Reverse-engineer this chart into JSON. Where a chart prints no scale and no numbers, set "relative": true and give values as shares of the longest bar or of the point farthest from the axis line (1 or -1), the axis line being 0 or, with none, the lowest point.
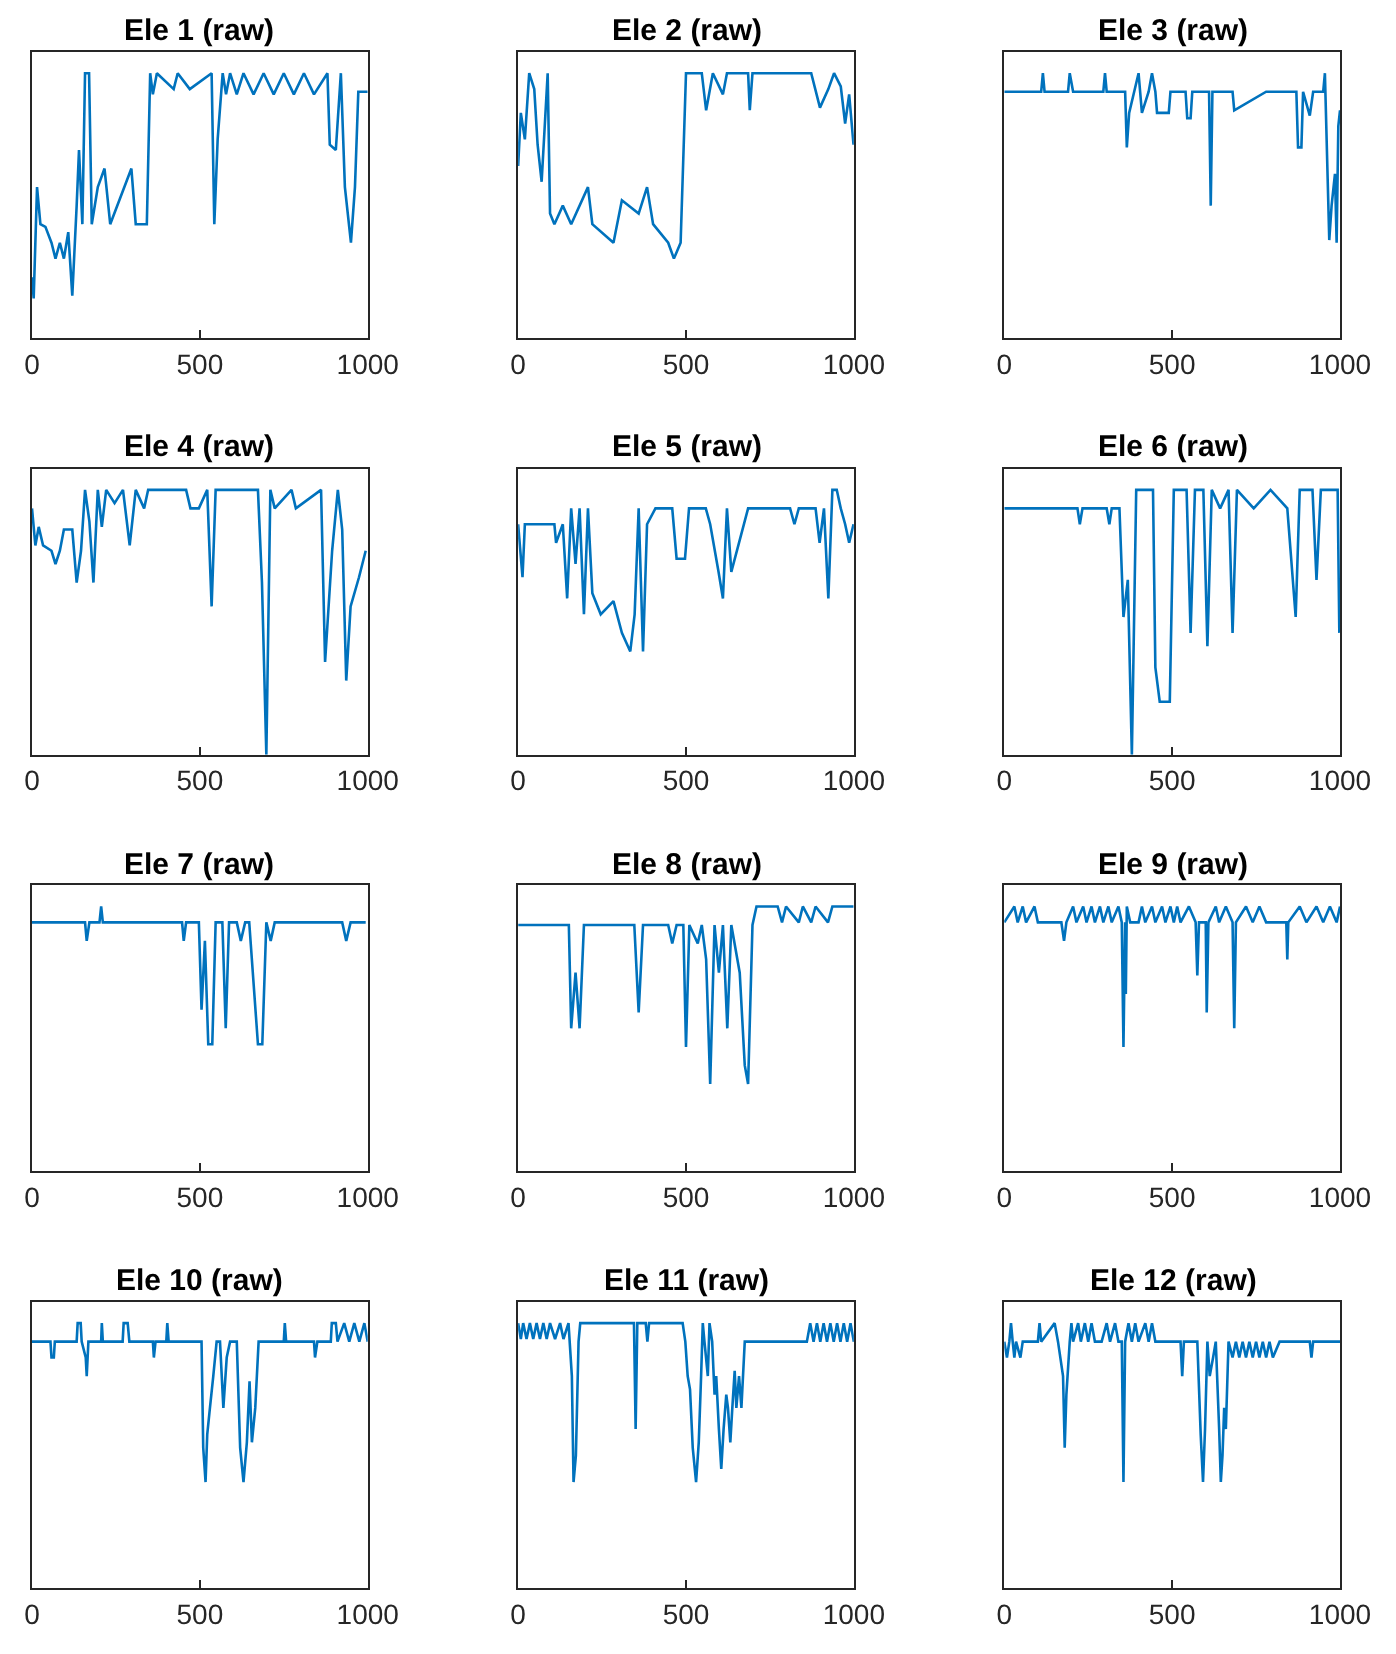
{
  "chart_data": [
    {
      "type": "line",
      "title": "Ele 1 (raw)",
      "relative": true,
      "xlim": [
        0,
        1000
      ],
      "xticks": [
        0,
        500,
        1000
      ],
      "series": [
        {
          "color": "#0072bd",
          "x": [
            0,
            5,
            15,
            25,
            40,
            58,
            70,
            83,
            95,
            108,
            120,
            133,
            140,
            150,
            158,
            170,
            178,
            196,
            216,
            233,
            296,
            309,
            342,
            352,
            360,
            372,
            422,
            434,
            470,
            535,
            543,
            553,
            568,
            578,
            590,
            610,
            630,
            660,
            690,
            720,
            750,
            780,
            810,
            840,
            880,
            887,
            905,
            920,
            932,
            950,
            962,
            972,
            1000
          ],
          "values": [
            0.23,
            0.15,
            0.57,
            0.43,
            0.42,
            0.36,
            0.3,
            0.36,
            0.3,
            0.4,
            0.16,
            0.5,
            0.71,
            0.43,
            1.0,
            1.0,
            0.43,
            0.57,
            0.64,
            0.43,
            0.64,
            0.43,
            0.43,
            1.0,
            0.92,
            1.0,
            0.94,
            1.0,
            0.94,
            1.0,
            0.43,
            0.75,
            1.0,
            0.92,
            1.0,
            0.92,
            1.0,
            0.92,
            1.0,
            0.92,
            1.0,
            0.92,
            1.0,
            0.92,
            1.0,
            0.73,
            0.71,
            1.0,
            0.57,
            0.36,
            0.57,
            0.93,
            0.93
          ]
        }
      ]
    },
    {
      "type": "line",
      "title": "Ele 2 (raw)",
      "relative": true,
      "xlim": [
        0,
        1000
      ],
      "xticks": [
        0,
        500,
        1000
      ],
      "series": [
        {
          "color": "#0072bd",
          "x": [
            0,
            8,
            20,
            33,
            48,
            58,
            70,
            88,
            95,
            108,
            133,
            158,
            208,
            221,
            284,
            309,
            359,
            384,
            402,
            447,
            464,
            484,
            500,
            547,
            560,
            580,
            610,
            622,
            685,
            690,
            698,
            873,
            899,
            924,
            941,
            961,
            974,
            986,
            999
          ],
          "values": [
            0.65,
            0.85,
            0.75,
            1.0,
            0.94,
            0.73,
            0.59,
            1.0,
            0.47,
            0.43,
            0.5,
            0.43,
            0.57,
            0.43,
            0.36,
            0.52,
            0.47,
            0.57,
            0.43,
            0.36,
            0.3,
            0.36,
            1.0,
            1.0,
            0.86,
            1.0,
            0.92,
            1.0,
            1.0,
            0.86,
            1.0,
            1.0,
            0.87,
            0.94,
            1.0,
            0.95,
            0.81,
            0.92,
            0.73
          ]
        }
      ]
    },
    {
      "type": "line",
      "title": "Ele 3 (raw)",
      "relative": true,
      "xlim": [
        0,
        1000
      ],
      "xticks": [
        0,
        500,
        1000
      ],
      "series": [
        {
          "color": "#0072bd",
          "x": [
            0,
            110,
            115,
            120,
            190,
            195,
            205,
            295,
            300,
            305,
            360,
            365,
            372,
            400,
            410,
            430,
            440,
            450,
            455,
            490,
            495,
            540,
            545,
            555,
            560,
            610,
            615,
            620,
            680,
            685,
            780,
            870,
            875,
            885,
            890,
            910,
            920,
            950,
            955,
            968,
            975,
            985,
            990,
            995,
            1000
          ],
          "values": [
            0.93,
            0.93,
            1.0,
            0.93,
            0.93,
            1.0,
            0.93,
            0.93,
            1.0,
            0.93,
            0.93,
            0.72,
            0.85,
            1.0,
            0.85,
            0.93,
            1.0,
            0.93,
            0.85,
            0.85,
            0.93,
            0.93,
            0.83,
            0.83,
            0.93,
            0.93,
            0.5,
            0.93,
            0.93,
            0.86,
            0.93,
            0.93,
            0.72,
            0.72,
            0.93,
            0.84,
            0.93,
            0.93,
            1.0,
            0.37,
            0.5,
            0.62,
            0.36,
            0.8,
            0.86
          ]
        }
      ]
    },
    {
      "type": "line",
      "title": "Ele 4 (raw)",
      "relative": true,
      "xlim": [
        0,
        1000
      ],
      "xticks": [
        0,
        500,
        1000
      ],
      "series": [
        {
          "color": "#0072bd",
          "x": [
            0,
            10,
            20,
            33,
            58,
            70,
            83,
            95,
            120,
            133,
            146,
            158,
            171,
            183,
            196,
            208,
            221,
            246,
            271,
            291,
            309,
            334,
            346,
            459,
            472,
            497,
            522,
            535,
            547,
            673,
            685,
            698,
            710,
            723,
            773,
            786,
            861,
            873,
            894,
            911,
            924,
            936,
            949,
            974,
            994
          ],
          "values": [
            0.93,
            0.79,
            0.86,
            0.79,
            0.77,
            0.72,
            0.77,
            0.85,
            0.85,
            0.65,
            0.77,
            1.0,
            0.88,
            0.65,
            1.0,
            0.86,
            1.0,
            0.95,
            1.0,
            0.79,
            1.0,
            0.93,
            1.0,
            1.0,
            0.93,
            0.93,
            1.0,
            0.56,
            1.0,
            1.0,
            0.65,
            0.0,
            1.0,
            0.93,
            1.0,
            0.93,
            1.0,
            0.35,
            0.77,
            1.0,
            0.85,
            0.28,
            0.56,
            0.67,
            0.77
          ]
        }
      ]
    },
    {
      "type": "line",
      "title": "Ele 5 (raw)",
      "relative": true,
      "xlim": [
        0,
        1000
      ],
      "xticks": [
        0,
        500,
        1000
      ],
      "series": [
        {
          "color": "#0072bd",
          "x": [
            0,
            13,
            20,
            108,
            113,
            133,
            146,
            158,
            171,
            183,
            196,
            208,
            221,
            246,
            284,
            309,
            334,
            347,
            359,
            372,
            384,
            409,
            459,
            472,
            497,
            509,
            559,
            572,
            597,
            610,
            622,
            635,
            685,
            810,
            823,
            836,
            886,
            898,
            911,
            924,
            936,
            949,
            961,
            974,
            986,
            999
          ],
          "values": [
            0.87,
            0.67,
            0.87,
            0.87,
            0.8,
            0.87,
            0.59,
            0.93,
            0.72,
            0.93,
            0.53,
            0.93,
            0.61,
            0.53,
            0.58,
            0.46,
            0.39,
            0.53,
            0.93,
            0.39,
            0.87,
            0.93,
            0.93,
            0.74,
            0.74,
            0.93,
            0.93,
            0.87,
            0.69,
            0.59,
            0.93,
            0.69,
            0.93,
            0.93,
            0.87,
            0.93,
            0.93,
            0.8,
            0.93,
            0.59,
            1.0,
            1.0,
            0.93,
            0.87,
            0.8,
            0.87
          ]
        }
      ]
    },
    {
      "type": "line",
      "title": "Ele 6 (raw)",
      "relative": true,
      "xlim": [
        0,
        1000
      ],
      "xticks": [
        0,
        500,
        1000
      ],
      "series": [
        {
          "color": "#0072bd",
          "x": [
            0,
            218,
            225,
            233,
            305,
            313,
            320,
            343,
            355,
            368,
            380,
            393,
            443,
            450,
            463,
            493,
            505,
            543,
            555,
            568,
            593,
            605,
            618,
            643,
            668,
            680,
            693,
            743,
            793,
            843,
            868,
            880,
            918,
            930,
            943,
            968,
            993,
            998
          ],
          "values": [
            0.93,
            0.93,
            0.87,
            0.93,
            0.93,
            0.87,
            0.93,
            0.93,
            0.52,
            0.66,
            0.0,
            1.0,
            1.0,
            0.33,
            0.2,
            0.2,
            1.0,
            1.0,
            0.46,
            1.0,
            1.0,
            0.41,
            1.0,
            0.93,
            1.0,
            0.46,
            1.0,
            0.93,
            1.0,
            0.93,
            0.52,
            1.0,
            1.0,
            0.66,
            1.0,
            1.0,
            1.0,
            0.46
          ]
        }
      ]
    },
    {
      "type": "line",
      "title": "Ele 7 (raw)",
      "relative": true,
      "xlim": [
        0,
        1000
      ],
      "xticks": [
        0,
        500,
        1000
      ],
      "series": [
        {
          "color": "#0072bd",
          "x": [
            0,
            158,
            163,
            171,
            201,
            206,
            211,
            447,
            452,
            459,
            497,
            505,
            515,
            525,
            537,
            547,
            567,
            577,
            587,
            610,
            622,
            635,
            647,
            673,
            686,
            698,
            711,
            723,
            924,
            936,
            949,
            994
          ],
          "values": [
            0.94,
            0.94,
            0.87,
            0.94,
            0.94,
            1.0,
            0.94,
            0.94,
            0.87,
            0.94,
            0.94,
            0.61,
            0.87,
            0.48,
            0.48,
            0.94,
            0.94,
            0.54,
            0.94,
            0.94,
            0.87,
            0.94,
            0.94,
            0.48,
            0.48,
            0.94,
            0.87,
            0.94,
            0.94,
            0.87,
            0.94,
            0.94
          ]
        }
      ]
    },
    {
      "type": "line",
      "title": "Ele 8 (raw)",
      "relative": true,
      "xlim": [
        0,
        1000
      ],
      "xticks": [
        0,
        500,
        1000
      ],
      "series": [
        {
          "color": "#0072bd",
          "x": [
            0,
            151,
            158,
            171,
            183,
            196,
            346,
            359,
            372,
            447,
            459,
            472,
            492,
            500,
            510,
            535,
            547,
            560,
            572,
            585,
            598,
            610,
            623,
            635,
            660,
            675,
            685,
            698,
            710,
            773,
            786,
            798,
            836,
            848,
            873,
            886,
            923,
            936,
            999
          ],
          "values": [
            0.93,
            0.93,
            0.54,
            0.75,
            0.54,
            0.93,
            0.93,
            0.6,
            0.93,
            0.93,
            0.86,
            0.93,
            0.93,
            0.47,
            0.93,
            0.86,
            0.93,
            0.8,
            0.33,
            0.93,
            0.75,
            0.93,
            0.54,
            0.93,
            0.75,
            0.4,
            0.33,
            0.93,
            1.0,
            1.0,
            0.94,
            1.0,
            0.94,
            1.0,
            0.94,
            1.0,
            0.94,
            1.0,
            1.0
          ]
        }
      ]
    },
    {
      "type": "line",
      "title": "Ele 9 (raw)",
      "relative": true,
      "xlim": [
        0,
        1000
      ],
      "xticks": [
        0,
        500,
        1000
      ],
      "series": [
        {
          "color": "#0072bd",
          "x": [
            0,
            30,
            40,
            55,
            65,
            90,
            100,
            170,
            178,
            185,
            205,
            215,
            235,
            245,
            260,
            270,
            285,
            295,
            310,
            320,
            340,
            350,
            355,
            360,
            362,
            365,
            375,
            400,
            410,
            420,
            440,
            450,
            470,
            480,
            495,
            505,
            515,
            525,
            550,
            570,
            575,
            580,
            600,
            603,
            608,
            630,
            640,
            660,
            680,
            685,
            690,
            720,
            740,
            760,
            780,
            840,
            843,
            846,
            880,
            900,
            930,
            950,
            970,
            990,
            1000
          ],
          "values": [
            0.94,
            1.0,
            0.94,
            1.0,
            0.94,
            1.0,
            0.94,
            0.94,
            0.87,
            0.94,
            1.0,
            0.94,
            1.0,
            0.94,
            1.0,
            0.94,
            1.0,
            0.94,
            1.0,
            0.94,
            1.0,
            0.94,
            0.47,
            0.94,
            0.67,
            1.0,
            0.94,
            0.94,
            1.0,
            0.94,
            1.0,
            0.94,
            1.0,
            0.94,
            1.0,
            0.94,
            1.0,
            0.94,
            1.0,
            0.94,
            0.74,
            0.94,
            0.94,
            0.6,
            0.94,
            1.0,
            0.94,
            1.0,
            0.94,
            0.54,
            0.94,
            1.0,
            0.94,
            1.0,
            0.94,
            0.94,
            0.8,
            0.94,
            1.0,
            0.94,
            1.0,
            0.94,
            1.0,
            0.94,
            1.0
          ]
        }
      ]
    },
    {
      "type": "line",
      "title": "Ele 10 (raw)",
      "relative": true,
      "xlim": [
        0,
        1000
      ],
      "xticks": [
        0,
        500,
        1000
      ],
      "series": [
        {
          "color": "#0072bd",
          "x": [
            0,
            55,
            58,
            65,
            68,
            133,
            136,
            145,
            148,
            160,
            163,
            168,
            206,
            208,
            211,
            270,
            273,
            285,
            290,
            360,
            363,
            368,
            400,
            403,
            407,
            505,
            510,
            517,
            522,
            530,
            540,
            550,
            560,
            570,
            580,
            590,
            610,
            620,
            630,
            640,
            648,
            655,
            665,
            675,
            750,
            753,
            757,
            840,
            843,
            850,
            890,
            893,
            905,
            910,
            930,
            945,
            960,
            975,
            990,
            1000
          ],
          "values": [
            0.93,
            0.93,
            0.87,
            0.87,
            0.93,
            0.93,
            1.0,
            1.0,
            0.93,
            0.87,
            0.8,
            0.93,
            0.93,
            1.0,
            0.93,
            0.93,
            1.0,
            1.0,
            0.93,
            0.93,
            0.87,
            0.93,
            0.93,
            1.0,
            0.93,
            0.93,
            0.53,
            0.4,
            0.58,
            0.68,
            0.8,
            0.93,
            0.93,
            0.68,
            0.87,
            0.93,
            0.93,
            0.53,
            0.4,
            0.55,
            0.78,
            0.55,
            0.68,
            0.93,
            0.93,
            1.0,
            0.93,
            0.93,
            0.87,
            0.93,
            0.93,
            1.0,
            1.0,
            0.93,
            1.0,
            0.93,
            1.0,
            0.93,
            1.0,
            0.93
          ]
        }
      ]
    },
    {
      "type": "line",
      "title": "Ele 11 (raw)",
      "relative": true,
      "xlim": [
        0,
        1000
      ],
      "xticks": [
        0,
        500,
        1000
      ],
      "series": [
        {
          "color": "#0072bd",
          "x": [
            0,
            8,
            15,
            25,
            35,
            45,
            55,
            65,
            75,
            85,
            95,
            110,
            125,
            135,
            150,
            160,
            165,
            172,
            180,
            185,
            345,
            350,
            355,
            380,
            385,
            390,
            490,
            498,
            505,
            512,
            520,
            530,
            538,
            545,
            550,
            555,
            565,
            570,
            578,
            585,
            590,
            598,
            605,
            612,
            620,
            625,
            632,
            638,
            645,
            650,
            658,
            665,
            675,
            860,
            870,
            880,
            890,
            900,
            910,
            920,
            930,
            940,
            950,
            960,
            970,
            980,
            990,
            1000
          ],
          "values": [
            1.0,
            0.94,
            1.0,
            0.94,
            1.0,
            0.94,
            1.0,
            0.94,
            1.0,
            0.94,
            1.0,
            0.94,
            1.0,
            0.94,
            1.0,
            0.8,
            0.4,
            0.5,
            0.93,
            1.0,
            1.0,
            0.6,
            1.0,
            1.0,
            0.93,
            1.0,
            1.0,
            0.93,
            0.8,
            0.75,
            0.53,
            0.4,
            0.55,
            0.8,
            1.0,
            0.93,
            0.8,
            1.0,
            0.93,
            0.73,
            0.8,
            0.6,
            0.45,
            0.6,
            0.73,
            0.68,
            0.55,
            0.68,
            0.82,
            0.68,
            0.8,
            0.68,
            0.93,
            0.93,
            1.0,
            0.93,
            1.0,
            0.93,
            1.0,
            0.93,
            1.0,
            0.93,
            1.0,
            0.93,
            1.0,
            0.93,
            1.0,
            0.93
          ]
        }
      ]
    },
    {
      "type": "line",
      "title": "Ele 12 (raw)",
      "relative": true,
      "xlim": [
        0,
        1000
      ],
      "xticks": [
        0,
        500,
        1000
      ],
      "series": [
        {
          "color": "#0072bd",
          "x": [
            0,
            8,
            15,
            20,
            25,
            30,
            35,
            48,
            55,
            100,
            105,
            110,
            150,
            160,
            175,
            180,
            185,
            195,
            200,
            205,
            220,
            228,
            240,
            250,
            260,
            270,
            290,
            305,
            315,
            330,
            340,
            350,
            355,
            360,
            370,
            380,
            390,
            400,
            420,
            430,
            440,
            450,
            525,
            530,
            535,
            575,
            585,
            592,
            598,
            605,
            612,
            622,
            630,
            640,
            645,
            650,
            655,
            660,
            668,
            680,
            690,
            700,
            710,
            720,
            730,
            740,
            750,
            760,
            770,
            780,
            790,
            800,
            820,
            910,
            915,
            920,
            1000
          ],
          "values": [
            0.93,
            0.87,
            0.93,
            1.0,
            0.93,
            0.87,
            0.93,
            0.87,
            0.93,
            0.93,
            1.0,
            0.93,
            1.0,
            0.93,
            0.8,
            0.53,
            0.73,
            0.93,
            1.0,
            0.93,
            1.0,
            0.93,
            1.0,
            0.93,
            1.0,
            0.93,
            0.93,
            1.0,
            0.93,
            1.0,
            0.93,
            0.93,
            0.4,
            0.93,
            1.0,
            0.93,
            1.0,
            0.93,
            1.0,
            0.93,
            1.0,
            0.93,
            0.93,
            0.8,
            0.93,
            0.93,
            0.58,
            0.4,
            0.6,
            0.93,
            0.8,
            0.87,
            0.93,
            0.6,
            0.4,
            0.5,
            0.68,
            0.6,
            0.93,
            0.87,
            0.93,
            0.87,
            0.93,
            0.87,
            0.93,
            0.87,
            0.93,
            0.87,
            0.93,
            0.87,
            0.93,
            0.87,
            0.93,
            0.93,
            0.87,
            0.93,
            0.93
          ]
        }
      ]
    }
  ]
}
